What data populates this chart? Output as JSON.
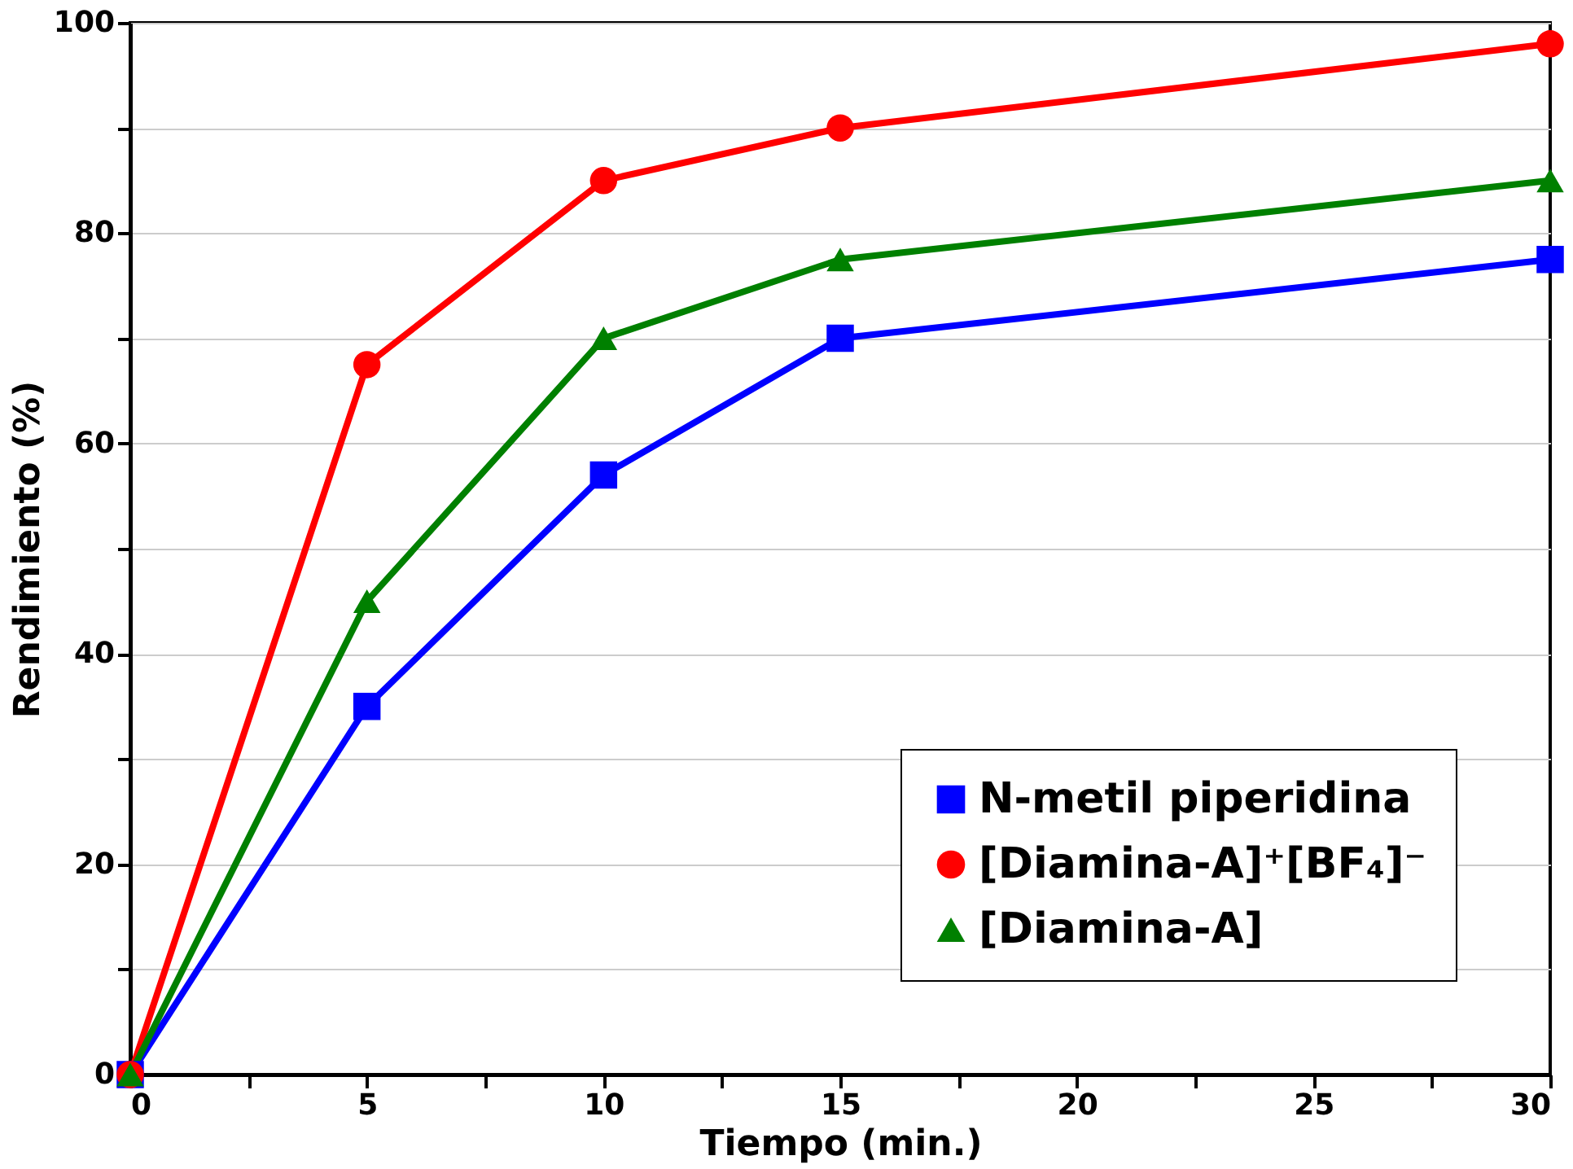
{
  "chart_data": {
    "type": "line",
    "xlabel": "Tiempo (min.)",
    "ylabel": "Rendimiento (%)",
    "x": [
      0,
      5,
      10,
      15,
      30
    ],
    "series": [
      {
        "name": "N-metil piperidina",
        "color": "#0000ff",
        "marker": "square",
        "values": [
          0,
          35,
          57,
          70,
          77.5
        ]
      },
      {
        "name": "[Diamina-A]⁺[BF₄]⁻",
        "color": "#ff0000",
        "marker": "circle",
        "values": [
          0,
          67.5,
          85,
          90,
          98
        ]
      },
      {
        "name": "[Diamina-A]",
        "color": "#008000",
        "marker": "triangle",
        "values": [
          0,
          45,
          70,
          77.5,
          85
        ]
      }
    ],
    "xlim": [
      0,
      30
    ],
    "xticks": [
      0,
      {
        "value": 2.5,
        "label": null
      },
      5,
      {
        "value": 7.5,
        "label": null
      },
      10,
      {
        "value": 12.5,
        "label": null
      },
      15,
      {
        "value": 17.5,
        "label": null
      },
      20,
      {
        "value": 22.5,
        "label": null
      },
      25,
      {
        "value": 27.5,
        "label": null
      },
      30
    ],
    "ylim": [
      0,
      100
    ],
    "yticks": [
      0,
      {
        "value": 10,
        "label": null
      },
      20,
      {
        "value": 30,
        "label": null
      },
      40,
      {
        "value": 50,
        "label": null
      },
      60,
      {
        "value": 70,
        "label": null
      },
      80,
      {
        "value": 90,
        "label": null
      },
      100
    ],
    "grid": "y",
    "legend": "bottom right",
    "line_style": "solid"
  }
}
